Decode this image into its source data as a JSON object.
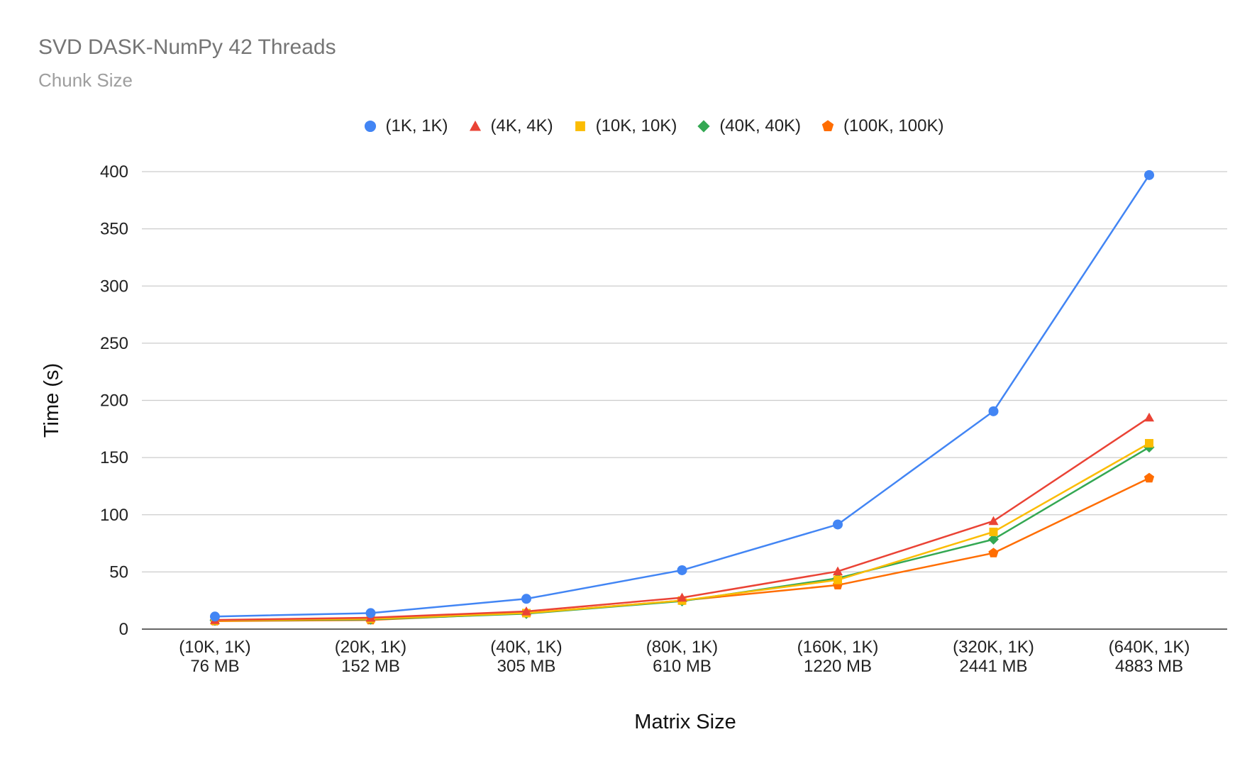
{
  "chart_data": {
    "type": "line",
    "title": "SVD DASK-NumPy 42 Threads",
    "subtitle": "Chunk Size",
    "xlabel": "Matrix Size",
    "ylabel": "Time (s)",
    "ylim": [
      0,
      400
    ],
    "yticks": [
      0,
      50,
      100,
      150,
      200,
      250,
      300,
      350,
      400
    ],
    "grid": true,
    "legend_position": "top",
    "categories": [
      [
        "(10K, 1K)",
        "76 MB"
      ],
      [
        "(20K, 1K)",
        "152 MB"
      ],
      [
        "(40K, 1K)",
        "305 MB"
      ],
      [
        "(80K, 1K)",
        "610 MB"
      ],
      [
        "(160K, 1K)",
        "1220 MB"
      ],
      [
        "(320K, 1K)",
        "2441 MB"
      ],
      [
        "(640K, 1K)",
        "4883 MB"
      ]
    ],
    "series": [
      {
        "name": "(1K, 1K)",
        "color": "#4285f4",
        "marker": "circle",
        "values": [
          11,
          14,
          26.5,
          51.5,
          91.5,
          190.5,
          397
        ]
      },
      {
        "name": "(4K, 4K)",
        "color": "#ea4335",
        "marker": "triangle",
        "values": [
          8,
          10,
          15.5,
          27.5,
          50.5,
          94.5,
          185
        ]
      },
      {
        "name": "(10K, 10K)",
        "color": "#fbbc04",
        "marker": "square",
        "values": [
          7.5,
          9,
          14,
          25,
          43,
          85,
          162.5
        ]
      },
      {
        "name": "(40K, 40K)",
        "color": "#34a853",
        "marker": "diamond",
        "values": [
          7.5,
          8.5,
          13.5,
          24.5,
          44.5,
          78.5,
          159
        ]
      },
      {
        "name": "(100K, 100K)",
        "color": "#ff6d01",
        "marker": "pentagon",
        "values": [
          7,
          8,
          14,
          25,
          38.5,
          66.5,
          132
        ]
      }
    ]
  }
}
